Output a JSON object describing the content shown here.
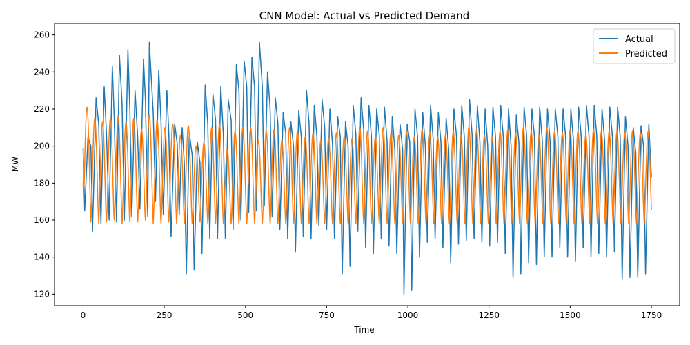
{
  "chart_data": {
    "type": "line",
    "title": "CNN Model: Actual vs Predicted Demand",
    "xlabel": "Time",
    "ylabel": "MW",
    "xlim": [
      -88,
      1837
    ],
    "ylim": [
      113.8,
      266.2
    ],
    "xticks": [
      0,
      250,
      500,
      750,
      1000,
      1250,
      1500,
      1750
    ],
    "yticks": [
      120,
      140,
      160,
      180,
      200,
      220,
      240,
      260
    ],
    "grid": false,
    "legend_position": "top-right",
    "period": 24,
    "series": [
      {
        "name": "Actual",
        "color": "#1f77b4",
        "x_range": [
          0,
          1750
        ],
        "keypoints": [
          [
            0,
            199
          ],
          [
            5,
            165
          ],
          [
            15,
            205
          ],
          [
            24,
            200
          ],
          [
            29,
            154
          ],
          [
            40,
            226
          ],
          [
            48,
            212
          ],
          [
            55,
            158
          ],
          [
            65,
            232
          ],
          [
            72,
            207
          ],
          [
            80,
            160
          ],
          [
            90,
            243
          ],
          [
            96,
            215
          ],
          [
            103,
            159
          ],
          [
            112,
            249
          ],
          [
            120,
            223
          ],
          [
            127,
            160
          ],
          [
            138,
            252
          ],
          [
            144,
            220
          ],
          [
            150,
            162
          ],
          [
            160,
            230
          ],
          [
            168,
            205
          ],
          [
            175,
            166
          ],
          [
            186,
            247
          ],
          [
            192,
            225
          ],
          [
            199,
            162
          ],
          [
            204,
            256
          ],
          [
            216,
            218
          ],
          [
            223,
            170
          ],
          [
            233,
            241
          ],
          [
            240,
            213
          ],
          [
            247,
            163
          ],
          [
            258,
            230
          ],
          [
            264,
            207
          ],
          [
            271,
            151
          ],
          [
            282,
            212
          ],
          [
            290,
            201
          ],
          [
            296,
            163
          ],
          [
            305,
            210
          ],
          [
            312,
            190
          ],
          [
            318,
            131
          ],
          [
            327,
            207
          ],
          [
            336,
            195
          ],
          [
            342,
            133
          ],
          [
            352,
            202
          ],
          [
            360,
            191
          ],
          [
            366,
            142
          ],
          [
            376,
            233
          ],
          [
            384,
            212
          ],
          [
            390,
            150
          ],
          [
            400,
            228
          ],
          [
            408,
            214
          ],
          [
            414,
            150
          ],
          [
            424,
            232
          ],
          [
            432,
            206
          ],
          [
            438,
            150
          ],
          [
            447,
            225
          ],
          [
            456,
            214
          ],
          [
            462,
            155
          ],
          [
            472,
            244
          ],
          [
            480,
            230
          ],
          [
            486,
            160
          ],
          [
            496,
            246
          ],
          [
            504,
            232
          ],
          [
            510,
            164
          ],
          [
            520,
            248
          ],
          [
            528,
            232
          ],
          [
            534,
            165
          ],
          [
            543,
            256
          ],
          [
            552,
            232
          ],
          [
            558,
            168
          ],
          [
            568,
            240
          ],
          [
            576,
            220
          ],
          [
            582,
            162
          ],
          [
            592,
            226
          ],
          [
            600,
            212
          ],
          [
            606,
            155
          ],
          [
            616,
            218
          ],
          [
            624,
            207
          ],
          [
            630,
            150
          ],
          [
            640,
            213
          ],
          [
            648,
            200
          ],
          [
            654,
            143
          ],
          [
            664,
            219
          ],
          [
            672,
            205
          ],
          [
            678,
            151
          ],
          [
            688,
            230
          ],
          [
            696,
            212
          ],
          [
            702,
            150
          ],
          [
            712,
            222
          ],
          [
            720,
            205
          ],
          [
            726,
            157
          ],
          [
            736,
            225
          ],
          [
            744,
            210
          ],
          [
            750,
            155
          ],
          [
            760,
            220
          ],
          [
            768,
            201
          ],
          [
            774,
            150
          ],
          [
            784,
            216
          ],
          [
            792,
            205
          ],
          [
            798,
            131
          ],
          [
            808,
            213
          ],
          [
            816,
            200
          ],
          [
            822,
            135
          ],
          [
            832,
            222
          ],
          [
            840,
            206
          ],
          [
            846,
            154
          ],
          [
            856,
            226
          ],
          [
            864,
            209
          ],
          [
            870,
            145
          ],
          [
            880,
            222
          ],
          [
            888,
            205
          ],
          [
            894,
            142
          ],
          [
            904,
            220
          ],
          [
            912,
            206
          ],
          [
            918,
            150
          ],
          [
            928,
            221
          ],
          [
            936,
            203
          ],
          [
            942,
            146
          ],
          [
            952,
            216
          ],
          [
            960,
            198
          ],
          [
            966,
            142
          ],
          [
            976,
            212
          ],
          [
            984,
            198
          ],
          [
            988,
            120
          ],
          [
            998,
            212
          ],
          [
            1006,
            202
          ],
          [
            1012,
            122
          ],
          [
            1022,
            220
          ],
          [
            1030,
            205
          ],
          [
            1036,
            140
          ],
          [
            1046,
            218
          ],
          [
            1054,
            200
          ],
          [
            1060,
            148
          ],
          [
            1070,
            222
          ],
          [
            1078,
            204
          ],
          [
            1084,
            150
          ],
          [
            1094,
            218
          ],
          [
            1102,
            202
          ],
          [
            1108,
            145
          ],
          [
            1118,
            215
          ],
          [
            1126,
            198
          ],
          [
            1132,
            137
          ],
          [
            1142,
            220
          ],
          [
            1150,
            205
          ],
          [
            1156,
            147
          ],
          [
            1166,
            222
          ],
          [
            1174,
            205
          ],
          [
            1180,
            149
          ],
          [
            1190,
            225
          ],
          [
            1198,
            206
          ],
          [
            1204,
            150
          ],
          [
            1214,
            222
          ],
          [
            1222,
            202
          ],
          [
            1228,
            148
          ],
          [
            1238,
            220
          ],
          [
            1246,
            200
          ],
          [
            1252,
            146
          ],
          [
            1262,
            221
          ],
          [
            1270,
            205
          ],
          [
            1276,
            148
          ],
          [
            1286,
            222
          ],
          [
            1294,
            205
          ],
          [
            1300,
            142
          ],
          [
            1310,
            220
          ],
          [
            1318,
            200
          ],
          [
            1324,
            129
          ],
          [
            1334,
            217
          ],
          [
            1342,
            202
          ],
          [
            1348,
            131
          ],
          [
            1358,
            221
          ],
          [
            1366,
            205
          ],
          [
            1372,
            137
          ],
          [
            1382,
            220
          ],
          [
            1390,
            205
          ],
          [
            1396,
            136
          ],
          [
            1406,
            221
          ],
          [
            1414,
            203
          ],
          [
            1420,
            140
          ],
          [
            1430,
            220
          ],
          [
            1438,
            203
          ],
          [
            1444,
            140
          ],
          [
            1454,
            220
          ],
          [
            1462,
            205
          ],
          [
            1468,
            145
          ],
          [
            1478,
            220
          ],
          [
            1486,
            205
          ],
          [
            1492,
            140
          ],
          [
            1502,
            220
          ],
          [
            1510,
            203
          ],
          [
            1516,
            138
          ],
          [
            1526,
            221
          ],
          [
            1534,
            205
          ],
          [
            1540,
            145
          ],
          [
            1550,
            222
          ],
          [
            1558,
            205
          ],
          [
            1564,
            140
          ],
          [
            1574,
            222
          ],
          [
            1582,
            205
          ],
          [
            1588,
            142
          ],
          [
            1598,
            220
          ],
          [
            1606,
            203
          ],
          [
            1612,
            140
          ],
          [
            1622,
            221
          ],
          [
            1630,
            205
          ],
          [
            1636,
            143
          ],
          [
            1646,
            221
          ],
          [
            1654,
            205
          ],
          [
            1660,
            128
          ],
          [
            1670,
            216
          ],
          [
            1678,
            200
          ],
          [
            1684,
            129
          ],
          [
            1694,
            210
          ],
          [
            1702,
            196
          ],
          [
            1708,
            129
          ],
          [
            1718,
            211
          ],
          [
            1726,
            200
          ],
          [
            1732,
            131
          ],
          [
            1742,
            212
          ],
          [
            1750,
            183
          ]
        ]
      },
      {
        "name": "Predicted",
        "color": "#ff7f0e",
        "x_range": [
          0,
          1750
        ],
        "peak_min": [
          158,
          221
        ],
        "peak": [
          221,
          215,
          213,
          215,
          216,
          213,
          215,
          209,
          217,
          214,
          210,
          212,
          206,
          211,
          200,
          202,
          210,
          212,
          198,
          208,
          210,
          210,
          203,
          208,
          209,
          203,
          210,
          208,
          205,
          207,
          203,
          204,
          207,
          205,
          204,
          210,
          208,
          205,
          210,
          207,
          206,
          208,
          205,
          209,
          207,
          205,
          206,
          208,
          206,
          210,
          209,
          206,
          205,
          208,
          209,
          207,
          210,
          208,
          206,
          210,
          208,
          207,
          209,
          208,
          206,
          209,
          208,
          208,
          208,
          207,
          208,
          207,
          208,
          208
        ],
        "trough": [
          162,
          159,
          158,
          159,
          160,
          158,
          159,
          159,
          160,
          158,
          158,
          159,
          158,
          158,
          158,
          159,
          158,
          158,
          158,
          158,
          158,
          158,
          158,
          158,
          158,
          158,
          158,
          158,
          158,
          158,
          158,
          158,
          158,
          158,
          158,
          158,
          158,
          158,
          158,
          158,
          158,
          158,
          158,
          158,
          158,
          158,
          158,
          158,
          158,
          158,
          158,
          158,
          158,
          158,
          158,
          158,
          158,
          158,
          158,
          158,
          158,
          158,
          158,
          158,
          158,
          158,
          158,
          158,
          158,
          158,
          158,
          158,
          158,
          158
        ]
      }
    ]
  }
}
